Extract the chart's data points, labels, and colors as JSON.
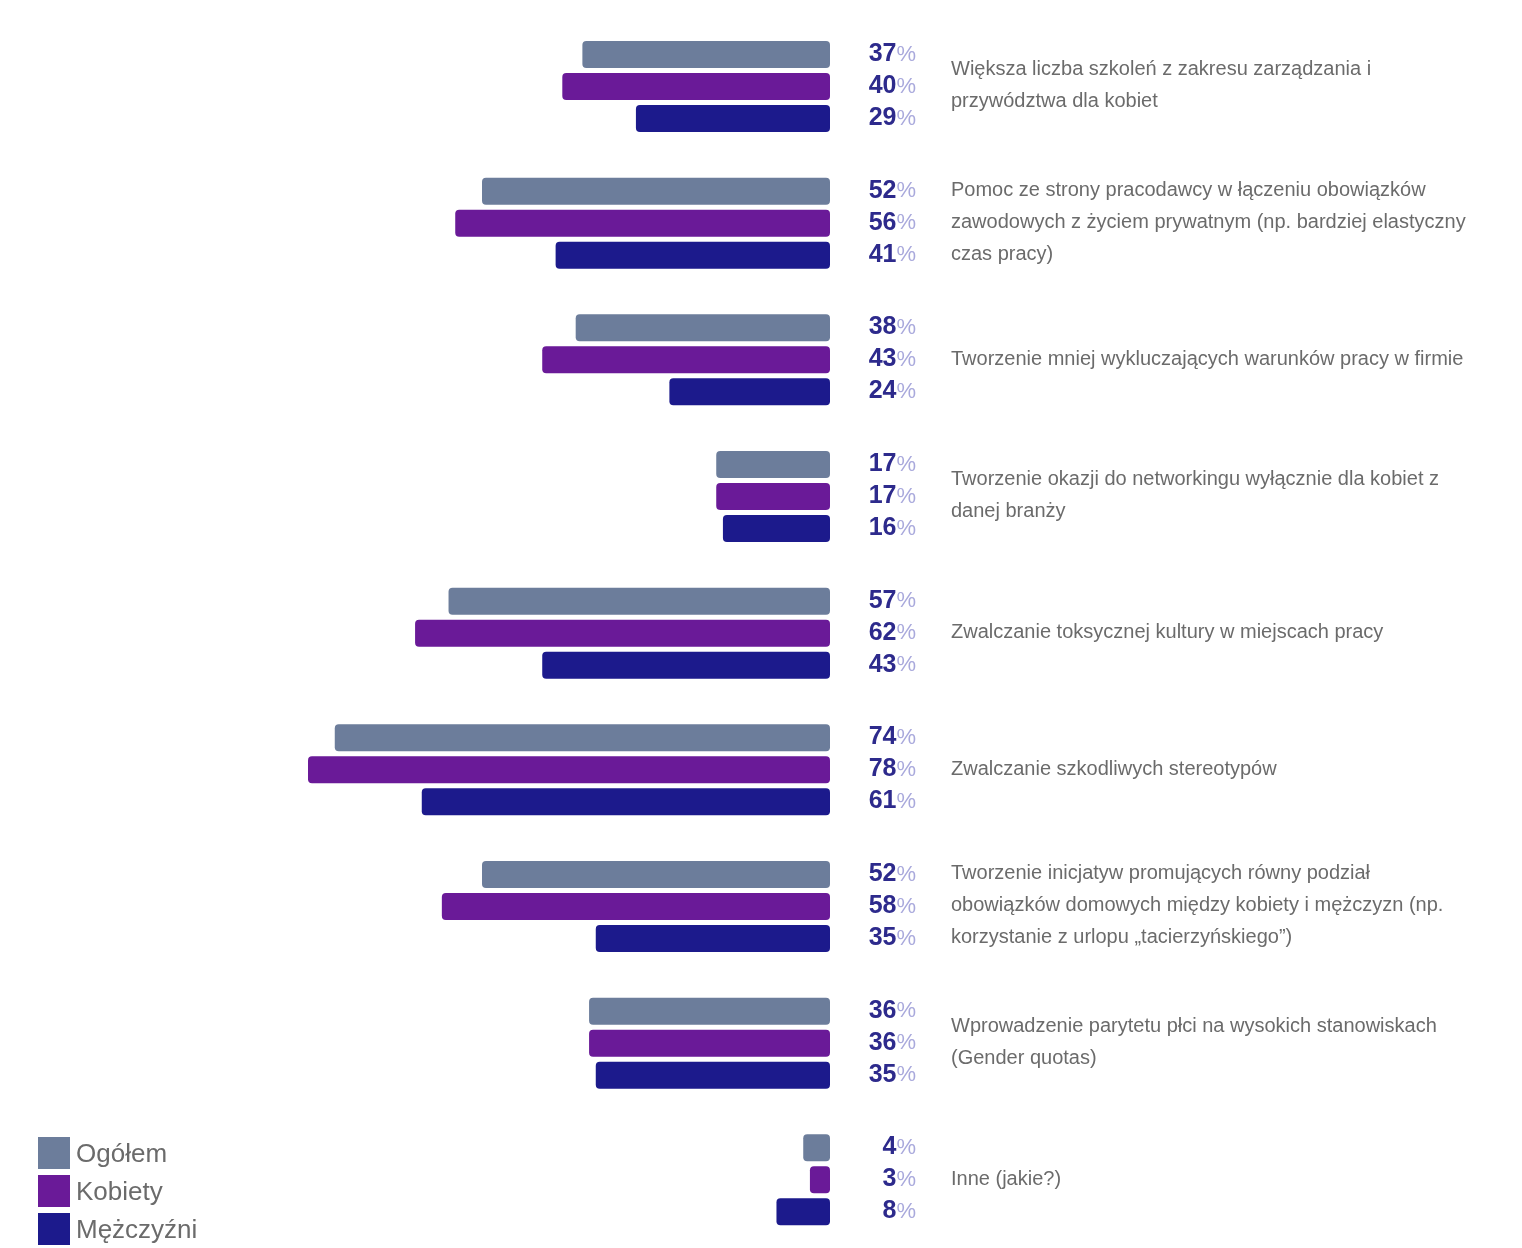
{
  "chart_data": {
    "type": "bar",
    "orientation": "horizontal",
    "xlim": [
      78,
      0
    ],
    "tick_labels": "y",
    "grid": false,
    "legend": "bottom left",
    "categories": [
      "Większa liczba szkoleń z zakresu zarządzania i przywództwa dla kobiet",
      "Pomoc ze strony pracodawcy w łączeniu obowiązków zawodowych z życiem prywatnym (np. bardziej elastyczny czas pracy)",
      "Tworzenie mniej wykluczających warunków pracy w firmie",
      "Tworzenie okazji do networkingu wyłącznie dla kobiet z danej branży",
      "Zwalczanie toksycznej kultury w miejscach pracy",
      "Zwalczanie szkodliwych stereotypów",
      "Tworzenie inicjatyw promujących równy podział obowiązków domowych między kobiety i mężczyzn (np. korzystanie z urlopu „tacierzyńskiego”)",
      "Wprowadzenie parytetu płci na wysokich stanowiskach (Gender quotas)",
      "Inne (jakie?)"
    ],
    "series": [
      {
        "name": "Ogółem",
        "color": "#6c7d9b",
        "values": [
          37,
          52,
          38,
          17,
          57,
          74,
          52,
          36,
          4
        ],
        "value_labels": [
          "37%",
          "52%",
          "38%",
          "17%",
          "57%",
          "74%",
          "52%",
          "36%",
          "4%"
        ]
      },
      {
        "name": "Kobiety",
        "color": "#6a1a98",
        "values": [
          40,
          56,
          43,
          17,
          62,
          78,
          58,
          36,
          3
        ],
        "value_labels": [
          "40%",
          "56%",
          "43%",
          "17%",
          "62%",
          "78%",
          "58%",
          "36%",
          "3%"
        ]
      },
      {
        "name": "Mężczyźni",
        "color": "#1c1a8c",
        "values": [
          29,
          41,
          24,
          16,
          43,
          61,
          35,
          35,
          8
        ],
        "value_labels": [
          "29%",
          "41%",
          "24%",
          "16%",
          "43%",
          "61%",
          "35%",
          "35%",
          "8%"
        ]
      }
    ]
  }
}
